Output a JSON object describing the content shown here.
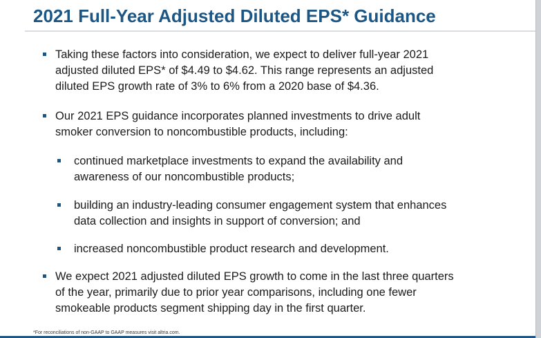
{
  "title": "2021 Full-Year Adjusted Diluted EPS* Guidance",
  "bullets": [
    {
      "text": "Taking these factors into consideration, we expect to deliver full-year 2021\nadjusted diluted EPS* of $4.49 to $4.62. This range represents an adjusted\ndiluted EPS growth rate of 3% to 6% from a 2020 base of $4.36."
    },
    {
      "text": "Our 2021 EPS guidance incorporates planned investments to drive adult\nsmoker conversion to noncombustible products, including:",
      "sub_bullets": [
        {
          "text": "continued marketplace investments to expand the availability and\nawareness of our noncombustible products;"
        },
        {
          "text": "building an industry-leading consumer engagement system that enhances\ndata collection and insights in support of conversion; and"
        },
        {
          "text": "increased noncombustible product research and development."
        }
      ]
    },
    {
      "text": "We expect 2021 adjusted diluted EPS growth to come in the last three quarters\nof the year, primarily due to prior year comparisons, including one fewer\nsmokeable products segment shipping day in the first quarter."
    }
  ],
  "footnote": "*For reconciliations of non-GAAP to GAAP measures visit altria.com.",
  "colors": {
    "title": "#1c5685",
    "bullet_marker": "#1c5685",
    "body_text": "#1a1a1a",
    "bottom_bar": "#1c5685"
  }
}
